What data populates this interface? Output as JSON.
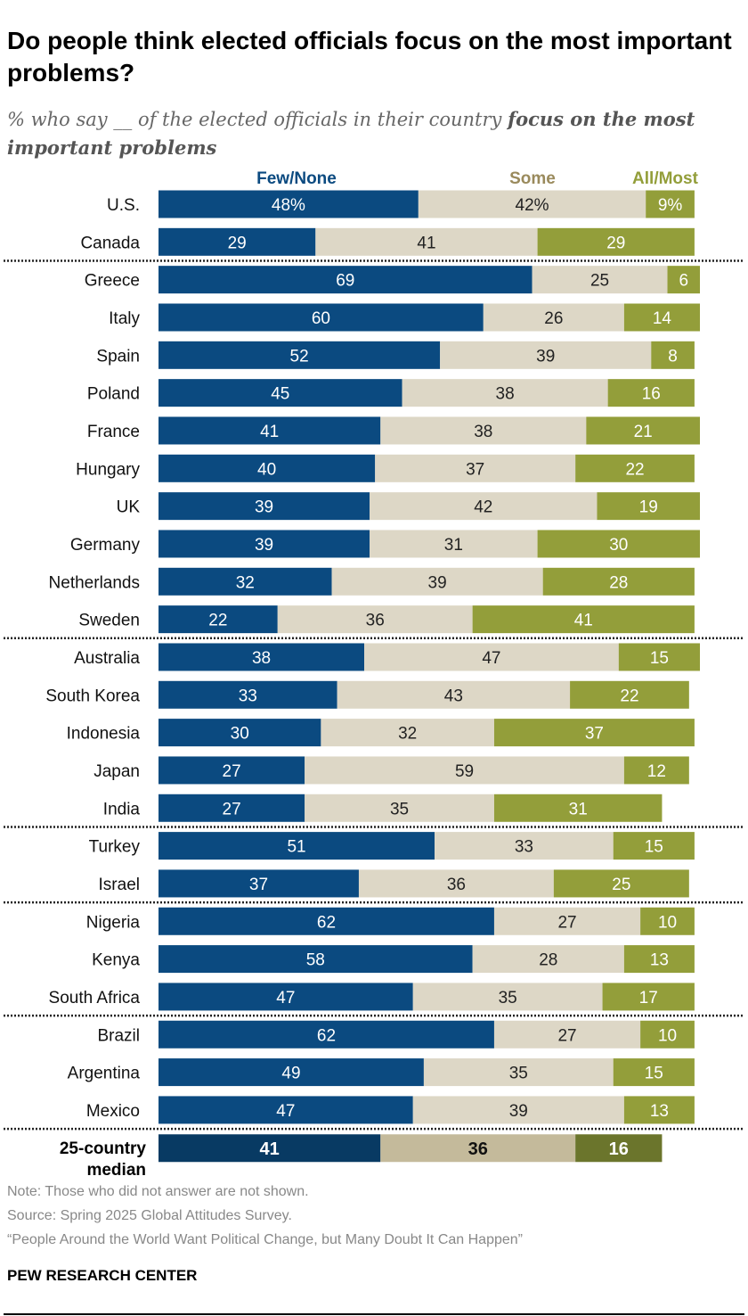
{
  "title": "Do people think elected officials focus on the most important problems?",
  "subtitle": {
    "pre": "% who say __ of the elected officials in their country ",
    "bold": "focus on the most important problems"
  },
  "colors": {
    "few": "#0b4a80",
    "some": "#ddd7c6",
    "all": "#939e3a",
    "few_median": "#083a63",
    "some_median": "#c4ba9b",
    "all_median": "#6b752c",
    "some_header": "#9a8a5c"
  },
  "chart_data": {
    "type": "bar",
    "orientation": "horizontal",
    "stacked": true,
    "series_names": [
      "Few/None",
      "Some",
      "All/Most"
    ],
    "groups": [
      [
        {
          "country": "U.S.",
          "values": [
            48,
            42,
            9
          ],
          "labels": [
            "48%",
            "42%",
            "9%"
          ]
        },
        {
          "country": "Canada",
          "values": [
            29,
            41,
            29
          ]
        }
      ],
      [
        {
          "country": "Greece",
          "values": [
            69,
            25,
            6
          ]
        },
        {
          "country": "Italy",
          "values": [
            60,
            26,
            14
          ]
        },
        {
          "country": "Spain",
          "values": [
            52,
            39,
            8
          ]
        },
        {
          "country": "Poland",
          "values": [
            45,
            38,
            16
          ]
        },
        {
          "country": "France",
          "values": [
            41,
            38,
            21
          ]
        },
        {
          "country": "Hungary",
          "values": [
            40,
            37,
            22
          ]
        },
        {
          "country": "UK",
          "values": [
            39,
            42,
            19
          ]
        },
        {
          "country": "Germany",
          "values": [
            39,
            31,
            30
          ]
        },
        {
          "country": "Netherlands",
          "values": [
            32,
            39,
            28
          ]
        },
        {
          "country": "Sweden",
          "values": [
            22,
            36,
            41
          ]
        }
      ],
      [
        {
          "country": "Australia",
          "values": [
            38,
            47,
            15
          ]
        },
        {
          "country": "South Korea",
          "values": [
            33,
            43,
            22
          ]
        },
        {
          "country": "Indonesia",
          "values": [
            30,
            32,
            37
          ]
        },
        {
          "country": "Japan",
          "values": [
            27,
            59,
            12
          ]
        },
        {
          "country": "India",
          "values": [
            27,
            35,
            31
          ]
        }
      ],
      [
        {
          "country": "Turkey",
          "values": [
            51,
            33,
            15
          ]
        },
        {
          "country": "Israel",
          "values": [
            37,
            36,
            25
          ]
        }
      ],
      [
        {
          "country": "Nigeria",
          "values": [
            62,
            27,
            10
          ]
        },
        {
          "country": "Kenya",
          "values": [
            58,
            28,
            13
          ]
        },
        {
          "country": "South Africa",
          "values": [
            47,
            35,
            17
          ]
        }
      ],
      [
        {
          "country": "Brazil",
          "values": [
            62,
            27,
            10
          ]
        },
        {
          "country": "Argentina",
          "values": [
            49,
            35,
            15
          ]
        },
        {
          "country": "Mexico",
          "values": [
            47,
            39,
            13
          ]
        }
      ]
    ],
    "median": {
      "label_line1": "25-country",
      "label_line2": "median",
      "values": [
        41,
        36,
        16
      ]
    }
  },
  "footer": {
    "note": "Note: Those who did not answer are not shown.",
    "source": "Source: Spring 2025 Global Attitudes Survey.",
    "report": "“People Around the World Want Political Change, but Many Doubt It Can Happen”",
    "brand": "PEW RESEARCH CENTER"
  }
}
